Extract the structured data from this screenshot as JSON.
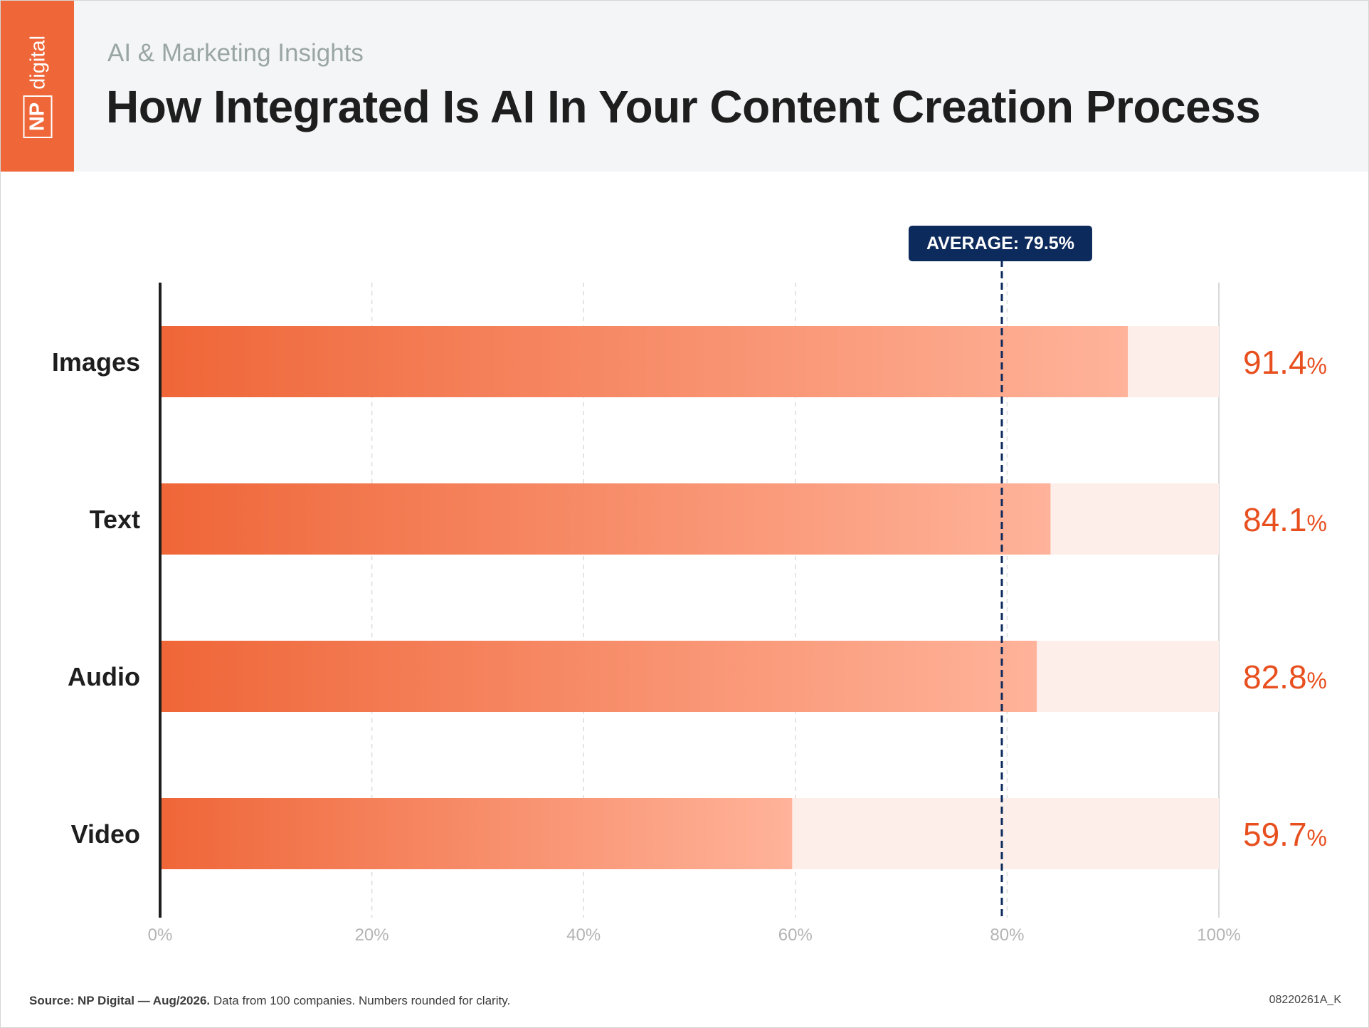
{
  "header": {
    "subtitle": "AI & Marketing Insights",
    "title": "How Integrated Is AI In Your Content Creation Process",
    "logo_np": "NP",
    "logo_digital": "digital"
  },
  "colors": {
    "brand_orange": "#ef6638",
    "bar_light": "#ffb39a",
    "track": "#fdeeea",
    "value_text": "#e84f1f",
    "average_navy": "#0d2a5c"
  },
  "chart_data": {
    "type": "bar",
    "orientation": "horizontal",
    "categories": [
      "Images",
      "Text",
      "Audio",
      "Video"
    ],
    "values": [
      91.4,
      84.1,
      82.8,
      59.7
    ],
    "value_labels": [
      "91.4",
      "84.1",
      "82.8",
      "59.7"
    ],
    "value_suffix": "%",
    "average": {
      "value": 79.5,
      "label": "AVERAGE: 79.5%"
    },
    "xlim": [
      0,
      100
    ],
    "xticks": [
      0,
      20,
      40,
      60,
      80,
      100
    ],
    "xtick_labels": [
      "0%",
      "20%",
      "40%",
      "60%",
      "80%",
      "100%"
    ],
    "grid": true
  },
  "footer": {
    "source_bold": "Source: NP Digital — Aug/2026.",
    "source_rest": " Data from 100 companies. Numbers rounded for clarity.",
    "code": "08220261A_K"
  }
}
